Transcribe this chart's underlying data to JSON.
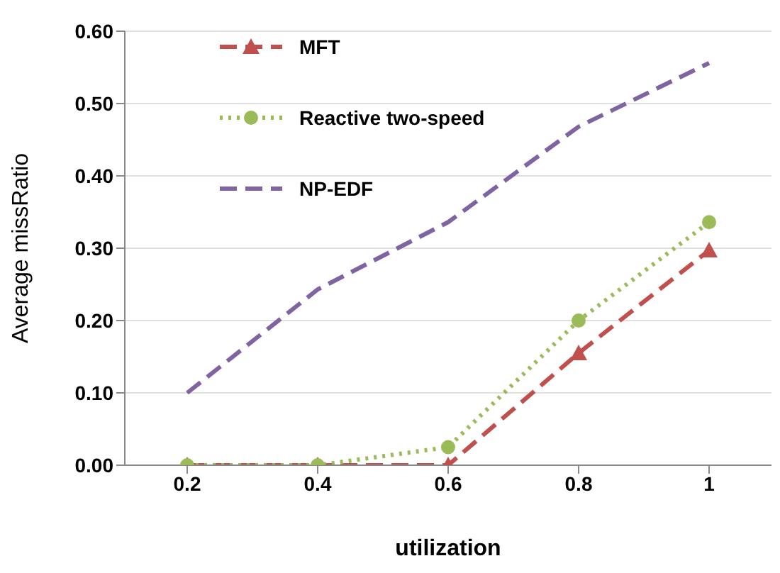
{
  "chart_data": {
    "type": "line",
    "xlabel": "utilization",
    "ylabel": "Average missRatio",
    "categories": [
      "0.2",
      "0.4",
      "0.6",
      "0.8",
      "1"
    ],
    "series": [
      {
        "name": "MFT",
        "color": "#c0504d",
        "values": [
          0,
          0,
          0,
          0.155,
          0.297
        ],
        "marker": "triangle",
        "line_style": "dashed"
      },
      {
        "name": "Reactive two-speed",
        "color": "#9bbb59",
        "values": [
          0,
          0,
          0.025,
          0.2,
          0.336
        ],
        "marker": "circle",
        "line_style": "dotted"
      },
      {
        "name": "NP-EDF",
        "color": "#8064a2",
        "values": [
          0.1,
          0.243,
          0.336,
          0.468,
          0.556
        ],
        "marker": "none",
        "line_style": "dashed"
      }
    ],
    "ylim": [
      0,
      0.6
    ],
    "yticks": [
      {
        "value": 0,
        "label": "0.00"
      },
      {
        "value": 0.1,
        "label": "0.10"
      },
      {
        "value": 0.2,
        "label": "0.20"
      },
      {
        "value": 0.3,
        "label": "0.30"
      },
      {
        "value": 0.4,
        "label": "0.40"
      },
      {
        "value": 0.5,
        "label": "0.50"
      },
      {
        "value": 0.6,
        "label": "0.60"
      }
    ],
    "grid": "y",
    "legend": "top left"
  }
}
